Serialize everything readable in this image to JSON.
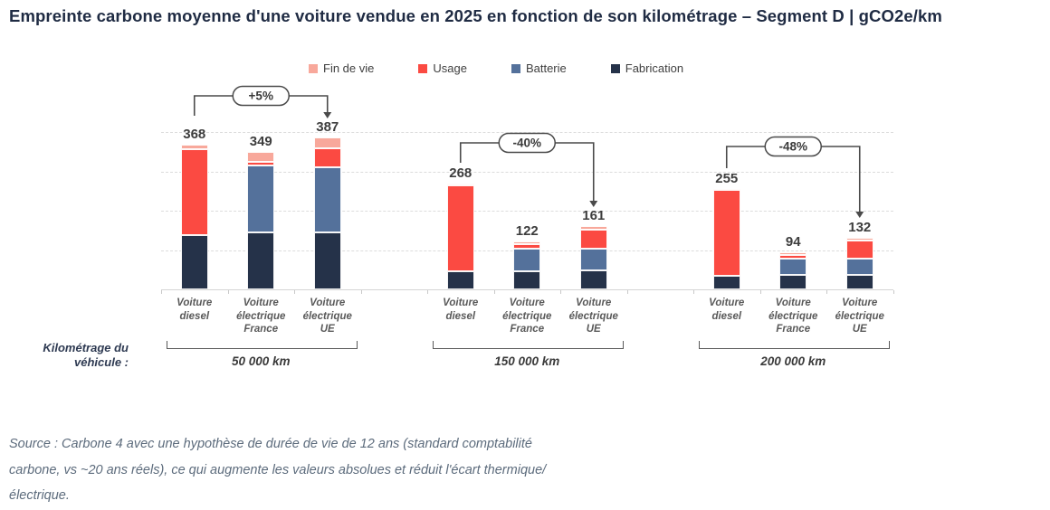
{
  "title": "Empreinte carbone moyenne d'une voiture vendue en 2025 en fonction de son kilométrage – Segment D | gCO2e/km",
  "axis": {
    "label_line1": "Kilométrage du",
    "label_line2": "véhicule :"
  },
  "source_lines": [
    "Source : Carbone 4 avec une hypothèse de durée de vie de 12 ans (standard comptabilité",
    "carbone, vs ~20 ans réels), ce qui augmente les valeurs absolues et réduit l'écart thermique/",
    "électrique."
  ],
  "chart_data": {
    "type": "bar",
    "stacked": true,
    "unit": "gCO2e/km",
    "ylim": [
      0,
      400
    ],
    "gridlines": [
      100,
      200,
      300,
      400
    ],
    "grid": "dashed-horizontal",
    "legend_position": "top-center",
    "legend_order": [
      "Fin de vie",
      "Usage",
      "Batterie",
      "Fabrication"
    ],
    "categories": [
      "Voiture diesel",
      "Voiture électrique France",
      "Voiture électrique UE"
    ],
    "categories_lines": [
      [
        "Voiture",
        "diesel"
      ],
      [
        "Voiture",
        "électrique",
        "France"
      ],
      [
        "Voiture",
        "électrique",
        "UE"
      ]
    ],
    "groups": [
      {
        "label": "50 000 km",
        "totals": [
          368,
          349,
          387
        ],
        "annotation": "+5%"
      },
      {
        "label": "150 000 km",
        "totals": [
          268,
          122,
          161
        ],
        "annotation": "-40%"
      },
      {
        "label": "200 000 km",
        "totals": [
          255,
          94,
          132
        ],
        "annotation": "-48%"
      }
    ],
    "series": [
      {
        "name": "Fabrication",
        "color": "#253249",
        "values": [
          [
            139,
            145,
            145
          ],
          [
            46,
            47,
            48
          ],
          [
            35,
            36,
            36
          ]
        ]
      },
      {
        "name": "Batterie",
        "color": "#54719b",
        "values": [
          [
            0,
            170,
            166
          ],
          [
            0,
            57,
            56
          ],
          [
            0,
            42,
            42
          ]
        ]
      },
      {
        "name": "Usage",
        "color": "#fb4a42",
        "values": [
          [
            218,
            10,
            47
          ],
          [
            219,
            10,
            47
          ],
          [
            217,
            10,
            47
          ]
        ]
      },
      {
        "name": "Fin de vie",
        "color": "#f8a89b",
        "values": [
          [
            11,
            24,
            29
          ],
          [
            3,
            8,
            10
          ],
          [
            3,
            6,
            7
          ]
        ]
      }
    ],
    "annotations": [
      {
        "group": 0,
        "label": "+5%",
        "from": "Voiture diesel",
        "to": "Voiture électrique UE"
      },
      {
        "group": 1,
        "label": "-40%",
        "from": "Voiture diesel",
        "to": "Voiture électrique UE"
      },
      {
        "group": 2,
        "label": "-48%",
        "from": "Voiture diesel",
        "to": "Voiture électrique UE"
      }
    ]
  }
}
